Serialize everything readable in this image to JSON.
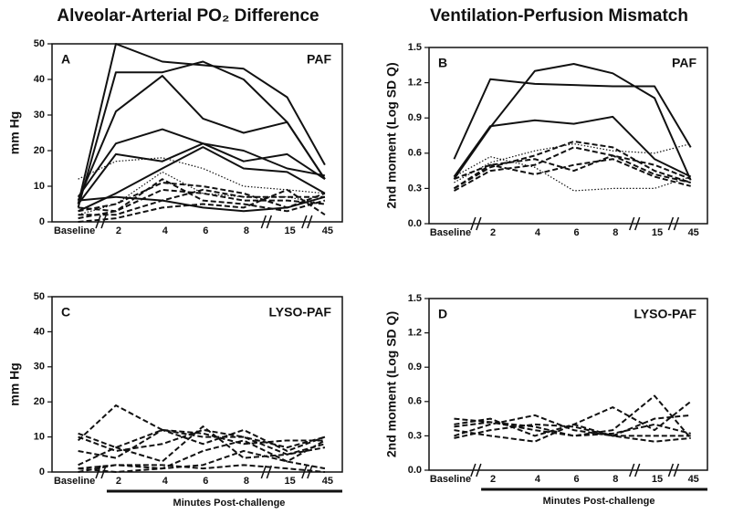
{
  "chart_data": [
    {
      "type": "line",
      "title": "Alveolar-Arterial PO₂ Difference",
      "panel_label": "A",
      "annotation": "PAF",
      "ylabel": "mm Hg",
      "categories": [
        "Baseline",
        "2",
        "4",
        "6",
        "8",
        "15",
        "45"
      ],
      "ylim": [
        0,
        50
      ],
      "yticks": [
        0,
        10,
        20,
        30,
        40,
        50
      ],
      "color": "#111111",
      "series": [
        {
          "style": "solid",
          "values": [
            5,
            50,
            45,
            44,
            43,
            35,
            16
          ]
        },
        {
          "style": "solid",
          "values": [
            4,
            42,
            42,
            45,
            40,
            28,
            12
          ]
        },
        {
          "style": "solid",
          "values": [
            6,
            31,
            41,
            29,
            25,
            28,
            12
          ]
        },
        {
          "style": "solid",
          "values": [
            7,
            22,
            26,
            22,
            20,
            15,
            13
          ]
        },
        {
          "style": "solid",
          "values": [
            5,
            19,
            17,
            22,
            17,
            19,
            12
          ]
        },
        {
          "style": "solid",
          "values": [
            3,
            8,
            15,
            21,
            15,
            14,
            8
          ]
        },
        {
          "style": "solid",
          "values": [
            6,
            7,
            6,
            4,
            3,
            4,
            7
          ]
        },
        {
          "style": "dotted",
          "values": [
            12,
            17,
            18,
            15,
            10,
            9,
            8
          ]
        },
        {
          "style": "dotted",
          "values": [
            2,
            5,
            14,
            8,
            7,
            7,
            5
          ]
        },
        {
          "style": "dashed",
          "values": [
            3,
            5,
            11,
            10,
            8,
            4,
            8
          ]
        },
        {
          "style": "dashed",
          "values": [
            1,
            3,
            9,
            8,
            6,
            6,
            5
          ]
        },
        {
          "style": "dashed",
          "values": [
            2,
            2,
            6,
            9,
            7,
            7,
            7
          ]
        },
        {
          "style": "dashed",
          "values": [
            0,
            1,
            4,
            5,
            4,
            9,
            2
          ]
        },
        {
          "style": "dashed",
          "values": [
            4,
            3,
            12,
            6,
            5,
            3,
            6
          ]
        }
      ]
    },
    {
      "type": "line",
      "title": "Ventilation-Perfusion Mismatch",
      "panel_label": "B",
      "annotation": "PAF",
      "ylabel": "2nd moment (Log SD Q)",
      "categories": [
        "Baseline",
        "2",
        "4",
        "6",
        "8",
        "15",
        "45"
      ],
      "ylim": [
        0,
        1.5
      ],
      "yticks": [
        {
          "value": 0,
          "label": "0.0"
        },
        0.3,
        0.6,
        0.9,
        1.2,
        1.5
      ],
      "color": "#111111",
      "series": [
        {
          "style": "solid",
          "values": [
            0.55,
            1.23,
            1.19,
            1.18,
            1.17,
            1.17,
            0.65
          ]
        },
        {
          "style": "solid",
          "values": [
            0.38,
            0.82,
            1.3,
            1.36,
            1.28,
            1.07,
            0.37
          ]
        },
        {
          "style": "solid",
          "values": [
            0.4,
            0.83,
            0.88,
            0.85,
            0.91,
            0.55,
            0.4
          ]
        },
        {
          "style": "dotted",
          "values": [
            0.4,
            0.57,
            0.48,
            0.28,
            0.3,
            0.3,
            0.4
          ]
        },
        {
          "style": "dotted",
          "values": [
            0.35,
            0.52,
            0.62,
            0.68,
            0.62,
            0.6,
            0.68
          ]
        },
        {
          "style": "dashed",
          "values": [
            0.3,
            0.48,
            0.58,
            0.7,
            0.65,
            0.45,
            0.35
          ]
        },
        {
          "style": "dashed",
          "values": [
            0.28,
            0.45,
            0.5,
            0.65,
            0.58,
            0.5,
            0.38
          ]
        },
        {
          "style": "dashed",
          "values": [
            0.3,
            0.5,
            0.42,
            0.5,
            0.55,
            0.4,
            0.32
          ]
        },
        {
          "style": "dashed",
          "values": [
            0.38,
            0.5,
            0.55,
            0.45,
            0.58,
            0.42,
            0.35
          ]
        }
      ]
    },
    {
      "type": "line",
      "panel_label": "C",
      "annotation": "LYSO-PAF",
      "ylabel": "mm Hg",
      "xlabel": "Minutes Post-challenge",
      "categories": [
        "Baseline",
        "2",
        "4",
        "6",
        "8",
        "15",
        "45"
      ],
      "ylim": [
        0,
        50
      ],
      "yticks": [
        0,
        10,
        20,
        30,
        40,
        50
      ],
      "color": "#111111",
      "series": [
        {
          "style": "dashed",
          "values": [
            11,
            7,
            12,
            11,
            8,
            9,
            9
          ]
        },
        {
          "style": "dashed",
          "values": [
            9,
            19,
            12,
            10,
            10,
            7,
            10
          ]
        },
        {
          "style": "dashed",
          "values": [
            6,
            4,
            12,
            8,
            12,
            6,
            10
          ]
        },
        {
          "style": "dashed",
          "values": [
            2,
            7,
            3,
            13,
            4,
            5,
            8
          ]
        },
        {
          "style": "dashed",
          "values": [
            1,
            2,
            1,
            6,
            9,
            3,
            9
          ]
        },
        {
          "style": "dashed",
          "values": [
            0,
            2,
            2,
            1,
            2,
            1,
            0
          ]
        },
        {
          "style": "dashed",
          "values": [
            1,
            0,
            1,
            2,
            6,
            3,
            1
          ]
        },
        {
          "style": "dashed",
          "values": [
            10,
            6,
            8,
            12,
            10,
            5,
            7
          ]
        }
      ]
    },
    {
      "type": "line",
      "panel_label": "D",
      "annotation": "LYSO-PAF",
      "ylabel": "2nd moment (Log SD Q)",
      "xlabel": "Minutes Post-challenge",
      "categories": [
        "Baseline",
        "2",
        "4",
        "6",
        "8",
        "15",
        "45"
      ],
      "ylim": [
        0,
        1.5
      ],
      "yticks": [
        {
          "value": 0,
          "label": "0.0"
        },
        0.3,
        0.6,
        0.9,
        1.2,
        1.5
      ],
      "color": "#111111",
      "series": [
        {
          "style": "dashed",
          "values": [
            0.45,
            0.42,
            0.38,
            0.3,
            0.35,
            0.65,
            0.28
          ]
        },
        {
          "style": "dashed",
          "values": [
            0.4,
            0.45,
            0.3,
            0.4,
            0.55,
            0.35,
            0.6
          ]
        },
        {
          "style": "dashed",
          "values": [
            0.3,
            0.4,
            0.48,
            0.35,
            0.3,
            0.45,
            0.48
          ]
        },
        {
          "style": "dashed",
          "values": [
            0.35,
            0.3,
            0.25,
            0.4,
            0.3,
            0.3,
            0.3
          ]
        },
        {
          "style": "dashed",
          "values": [
            0.38,
            0.42,
            0.35,
            0.3,
            0.32,
            0.4,
            0.32
          ]
        },
        {
          "style": "dashed",
          "values": [
            0.28,
            0.35,
            0.4,
            0.38,
            0.3,
            0.25,
            0.28
          ]
        }
      ]
    }
  ]
}
